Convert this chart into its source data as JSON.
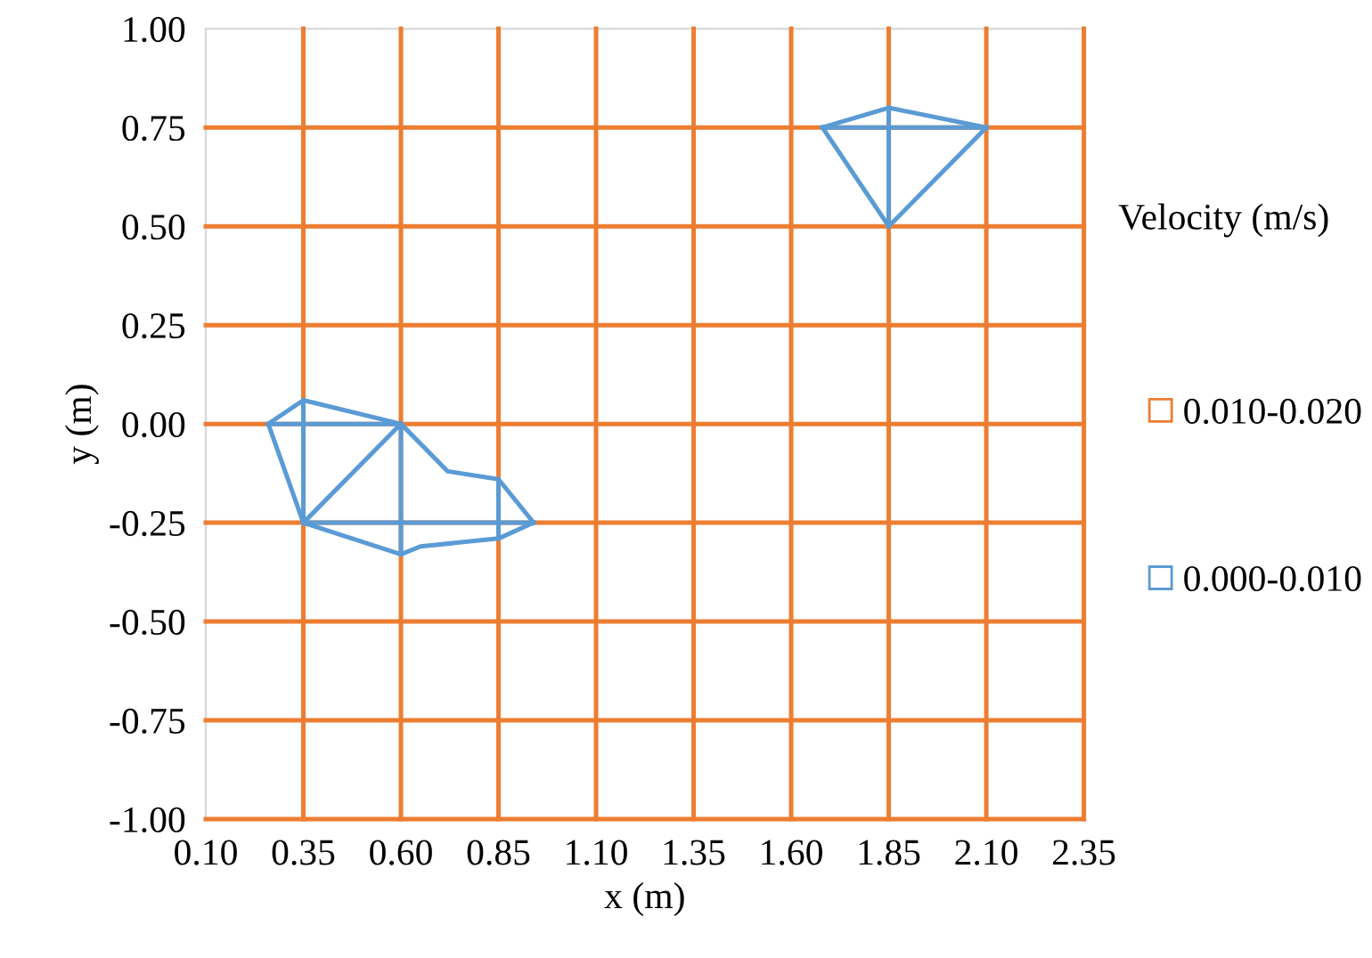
{
  "chart_data": {
    "type": "line",
    "xlabel": "x (m)",
    "ylabel": "y (m)",
    "legend_title": "Velocity (m/s)",
    "legend": "right",
    "marker": "none",
    "line_style": "solid",
    "xlim": [
      0.1,
      2.35
    ],
    "xticks": [
      {
        "value": 0.1,
        "label": "0.10"
      },
      {
        "value": 0.35,
        "label": "0.35"
      },
      {
        "value": 0.6,
        "label": "0.60"
      },
      {
        "value": 0.85,
        "label": "0.85"
      },
      {
        "value": 1.1,
        "label": "1.10"
      },
      {
        "value": 1.35,
        "label": "1.35"
      },
      {
        "value": 1.6,
        "label": "1.60"
      },
      {
        "value": 1.85,
        "label": "1.85"
      },
      {
        "value": 2.1,
        "label": "2.10"
      },
      {
        "value": 2.35,
        "label": "2.35"
      }
    ],
    "ylim": [
      -1.0,
      1.0
    ],
    "yticks": [
      {
        "value": -1.0,
        "label": "-1.00"
      },
      {
        "value": -0.75,
        "label": "-0.75"
      },
      {
        "value": -0.5,
        "label": "-0.50"
      },
      {
        "value": -0.25,
        "label": "-0.25"
      },
      {
        "value": 0.0,
        "label": "0.00"
      },
      {
        "value": 0.25,
        "label": "0.25"
      },
      {
        "value": 0.5,
        "label": "0.50"
      },
      {
        "value": 0.75,
        "label": "0.75"
      },
      {
        "value": 1.0,
        "label": "1.00"
      }
    ],
    "ref_lines": [
      {
        "axis": "x",
        "value": 0.35,
        "color": "#ed7d31"
      },
      {
        "axis": "x",
        "value": 0.6,
        "color": "#ed7d31"
      },
      {
        "axis": "x",
        "value": 0.85,
        "color": "#ed7d31"
      },
      {
        "axis": "x",
        "value": 1.1,
        "color": "#ed7d31"
      },
      {
        "axis": "x",
        "value": 1.35,
        "color": "#ed7d31"
      },
      {
        "axis": "x",
        "value": 1.6,
        "color": "#ed7d31"
      },
      {
        "axis": "x",
        "value": 1.85,
        "color": "#ed7d31"
      },
      {
        "axis": "x",
        "value": 2.1,
        "color": "#ed7d31"
      },
      {
        "axis": "x",
        "value": 2.35,
        "color": "#ed7d31"
      }
    ],
    "series": [
      {
        "name": "0.010-0.020",
        "color": "#ed7d31",
        "x": [
          0.1,
          2.35
        ],
        "values": [
          0.75,
          0.75
        ]
      },
      {
        "color": "#ed7d31",
        "x": [
          0.1,
          2.35
        ],
        "values": [
          0.5,
          0.5
        ]
      },
      {
        "color": "#ed7d31",
        "x": [
          0.1,
          2.35
        ],
        "values": [
          0.25,
          0.25
        ]
      },
      {
        "color": "#ed7d31",
        "x": [
          0.1,
          2.35
        ],
        "values": [
          0.0,
          0.0
        ]
      },
      {
        "color": "#ed7d31",
        "x": [
          0.1,
          2.35
        ],
        "values": [
          -0.25,
          -0.25
        ]
      },
      {
        "color": "#ed7d31",
        "x": [
          0.1,
          2.35
        ],
        "values": [
          -0.5,
          -0.5
        ]
      },
      {
        "color": "#ed7d31",
        "x": [
          0.1,
          2.35
        ],
        "values": [
          -0.75,
          -0.75
        ]
      },
      {
        "color": "#ed7d31",
        "x": [
          0.1,
          2.35
        ],
        "values": [
          -1.0,
          -1.0
        ]
      },
      {
        "name": "0.000-0.010",
        "color": "#5b9bd5",
        "x": [
          0.26,
          0.35,
          0.6,
          0.72,
          0.85,
          0.94
        ],
        "values": [
          0.0,
          0.06,
          0.0,
          -0.12,
          -0.14,
          -0.25
        ]
      },
      {
        "color": "#5b9bd5",
        "x": [
          0.26,
          0.35,
          0.6,
          0.65,
          0.85,
          0.94
        ],
        "values": [
          0.0,
          -0.25,
          -0.33,
          -0.31,
          -0.29,
          -0.25
        ]
      },
      {
        "color": "#5b9bd5",
        "x": [
          0.26,
          0.6
        ],
        "values": [
          0.0,
          0.0
        ]
      },
      {
        "color": "#5b9bd5",
        "x": [
          0.35,
          0.35
        ],
        "values": [
          0.06,
          -0.25
        ]
      },
      {
        "color": "#5b9bd5",
        "x": [
          0.35,
          0.6
        ],
        "values": [
          -0.25,
          0.0
        ]
      },
      {
        "color": "#5b9bd5",
        "x": [
          0.6,
          0.6
        ],
        "values": [
          0.0,
          -0.33
        ]
      },
      {
        "color": "#5b9bd5",
        "x": [
          0.35,
          0.94
        ],
        "values": [
          -0.25,
          -0.25
        ]
      },
      {
        "color": "#5b9bd5",
        "x": [
          0.85,
          0.85
        ],
        "values": [
          -0.14,
          -0.29
        ]
      },
      {
        "color": "#5b9bd5",
        "x": [
          1.68,
          1.85,
          2.1
        ],
        "values": [
          0.75,
          0.8,
          0.75
        ]
      },
      {
        "color": "#5b9bd5",
        "x": [
          1.68,
          1.85,
          2.1
        ],
        "values": [
          0.75,
          0.5,
          0.75
        ]
      },
      {
        "color": "#5b9bd5",
        "x": [
          1.68,
          2.1
        ],
        "values": [
          0.75,
          0.75
        ]
      },
      {
        "color": "#5b9bd5",
        "x": [
          1.85,
          1.85
        ],
        "values": [
          0.8,
          0.5
        ]
      }
    ]
  }
}
